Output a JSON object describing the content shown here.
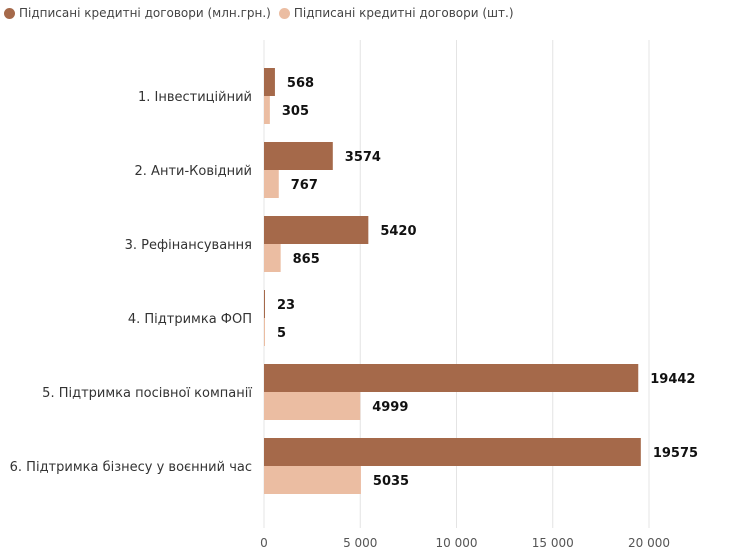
{
  "chart_data": {
    "type": "bar",
    "orientation": "horizontal",
    "categories": [
      "1. Інвестиційний",
      "2. Анти-Ковідний",
      "3. Рефінансування",
      "4. Підтримка ФОП",
      "5. Підтримка посівної компанії",
      "6. Підтримка бізнесу у воєнний час"
    ],
    "series": [
      {
        "name": "Підписані кредитні договори (млн.грн.)",
        "color": "#a5694a",
        "values": [
          568,
          3574,
          5420,
          23,
          19442,
          19575
        ]
      },
      {
        "name": "Підписані кредитні договори (шт.)",
        "color": "#ebbda2",
        "values": [
          305,
          767,
          865,
          5,
          4999,
          5035
        ]
      }
    ],
    "data_labels": [
      [
        "568",
        "3574",
        "5420",
        "23",
        "19442",
        "19575"
      ],
      [
        "305",
        "767",
        "865",
        "5",
        "4999",
        "5035"
      ]
    ],
    "xlim": [
      0,
      20000
    ],
    "x_ticks": [
      0,
      5000,
      10000,
      15000,
      20000
    ],
    "x_tick_labels": [
      "0",
      "5 000",
      "10 000",
      "15 000",
      "20 000"
    ],
    "grid": true,
    "legend_position": "top-left",
    "title": "",
    "xlabel": "",
    "ylabel": ""
  }
}
